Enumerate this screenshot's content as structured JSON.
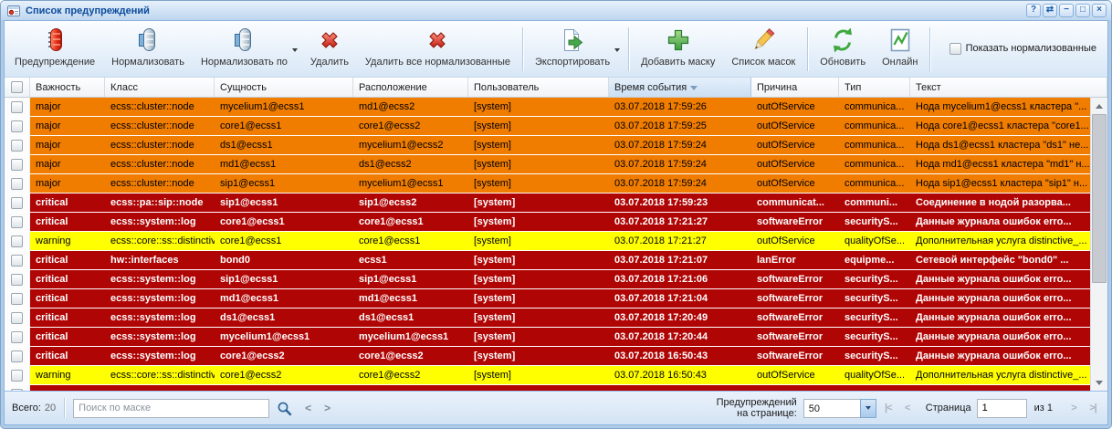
{
  "window": {
    "title": "Список предупреждений",
    "controls": [
      {
        "name": "help",
        "glyph": "?"
      },
      {
        "name": "refresh",
        "glyph": "⇄"
      },
      {
        "name": "minimize",
        "glyph": "−"
      },
      {
        "name": "maximize",
        "glyph": "□"
      },
      {
        "name": "close",
        "glyph": "×"
      }
    ]
  },
  "toolbar": {
    "buttons": [
      {
        "name": "alarm-button",
        "label": "Предупреждение",
        "icon": "alarm-beacon-red",
        "has_menu": false
      },
      {
        "name": "normalize-button",
        "label": "Нормализовать",
        "icon": "alarm-beacon-normalize",
        "has_menu": false
      },
      {
        "name": "normalize-by-button",
        "label": "Нормализовать по",
        "icon": "alarm-beacon-normalize",
        "has_menu": true
      },
      {
        "name": "delete-button",
        "label": "Удалить",
        "icon": "delete-cross-red",
        "has_menu": false
      },
      {
        "name": "delete-all-normalized-button",
        "label": "Удалить все нормализованные",
        "icon": "delete-cross-red",
        "has_menu": false
      },
      {
        "name": "export-button",
        "label": "Экспортировать",
        "icon": "export-document-arrow",
        "has_menu": true
      },
      {
        "name": "add-mask-button",
        "label": "Добавить маску",
        "icon": "add-plus-green",
        "has_menu": false
      },
      {
        "name": "mask-list-button",
        "label": "Список масок",
        "icon": "pencil-edit",
        "has_menu": false
      },
      {
        "name": "refresh-button",
        "label": "Обновить",
        "icon": "refresh-arrows-green",
        "has_menu": false
      },
      {
        "name": "online-button",
        "label": "Онлайн",
        "icon": "online-chart",
        "has_menu": false
      }
    ],
    "show_normalized_checkbox": {
      "label": "Показать нормализованные",
      "checked": false
    }
  },
  "grid": {
    "columns": [
      {
        "key": "severity",
        "label": "Важность"
      },
      {
        "key": "class",
        "label": "Класс"
      },
      {
        "key": "entity",
        "label": "Сущность"
      },
      {
        "key": "location",
        "label": "Расположение"
      },
      {
        "key": "user",
        "label": "Пользователь"
      },
      {
        "key": "time",
        "label": "Время события"
      },
      {
        "key": "reason",
        "label": "Причина"
      },
      {
        "key": "type",
        "label": "Тип"
      },
      {
        "key": "text",
        "label": "Текст"
      }
    ],
    "sort": {
      "column_key": "time",
      "direction": "desc"
    },
    "rows": [
      {
        "severity": "major",
        "class": "ecss::cluster::node",
        "entity": "mycelium1@ecss1",
        "location": "md1@ecss2",
        "user": "[system]",
        "time": "03.07.2018 17:59:26",
        "reason": "outOfService",
        "type": "communica...",
        "text": "Нода mycelium1@ecss1 кластера \"..."
      },
      {
        "severity": "major",
        "class": "ecss::cluster::node",
        "entity": "core1@ecss1",
        "location": "core1@ecss2",
        "user": "[system]",
        "time": "03.07.2018 17:59:25",
        "reason": "outOfService",
        "type": "communica...",
        "text": "Нода core1@ecss1 кластера \"core1..."
      },
      {
        "severity": "major",
        "class": "ecss::cluster::node",
        "entity": "ds1@ecss1",
        "location": "mycelium1@ecss2",
        "user": "[system]",
        "time": "03.07.2018 17:59:24",
        "reason": "outOfService",
        "type": "communica...",
        "text": "Нода ds1@ecss1 кластера \"ds1\" не..."
      },
      {
        "severity": "major",
        "class": "ecss::cluster::node",
        "entity": "md1@ecss1",
        "location": "ds1@ecss2",
        "user": "[system]",
        "time": "03.07.2018 17:59:24",
        "reason": "outOfService",
        "type": "communica...",
        "text": "Нода md1@ecss1 кластера \"md1\" н..."
      },
      {
        "severity": "major",
        "class": "ecss::cluster::node",
        "entity": "sip1@ecss1",
        "location": "mycelium1@ecss1",
        "user": "[system]",
        "time": "03.07.2018 17:59:24",
        "reason": "outOfService",
        "type": "communica...",
        "text": "Нода sip1@ecss1 кластера \"sip1\" н..."
      },
      {
        "severity": "critical",
        "class": "ecss::pa::sip::node",
        "entity": "sip1@ecss1",
        "location": "sip1@ecss2",
        "user": "[system]",
        "time": "03.07.2018 17:59:23",
        "reason": "communicat...",
        "type": "communi...",
        "text": "Соединение в нодой разорва..."
      },
      {
        "severity": "critical",
        "class": "ecss::system::log",
        "entity": "core1@ecss1",
        "location": "core1@ecss1",
        "user": "[system]",
        "time": "03.07.2018 17:21:27",
        "reason": "softwareError",
        "type": "securityS...",
        "text": "Данные журнала ошибок erro..."
      },
      {
        "severity": "warning",
        "class": "ecss::core::ss::distinctiv...",
        "entity": "core1@ecss1",
        "location": "core1@ecss1",
        "user": "[system]",
        "time": "03.07.2018 17:21:27",
        "reason": "outOfService",
        "type": "qualityOfSe...",
        "text": "Дополнительная услуга distinctive_..."
      },
      {
        "severity": "critical",
        "class": "hw::interfaces",
        "entity": "bond0",
        "location": "ecss1",
        "user": "[system]",
        "time": "03.07.2018 17:21:07",
        "reason": "lanError",
        "type": "equipme...",
        "text": "Сетевой интерфейс \"bond0\" ..."
      },
      {
        "severity": "critical",
        "class": "ecss::system::log",
        "entity": "sip1@ecss1",
        "location": "sip1@ecss1",
        "user": "[system]",
        "time": "03.07.2018 17:21:06",
        "reason": "softwareError",
        "type": "securityS...",
        "text": "Данные журнала ошибок erro..."
      },
      {
        "severity": "critical",
        "class": "ecss::system::log",
        "entity": "md1@ecss1",
        "location": "md1@ecss1",
        "user": "[system]",
        "time": "03.07.2018 17:21:04",
        "reason": "softwareError",
        "type": "securityS...",
        "text": "Данные журнала ошибок erro..."
      },
      {
        "severity": "critical",
        "class": "ecss::system::log",
        "entity": "ds1@ecss1",
        "location": "ds1@ecss1",
        "user": "[system]",
        "time": "03.07.2018 17:20:49",
        "reason": "softwareError",
        "type": "securityS...",
        "text": "Данные журнала ошибок erro..."
      },
      {
        "severity": "critical",
        "class": "ecss::system::log",
        "entity": "mycelium1@ecss1",
        "location": "mycelium1@ecss1",
        "user": "[system]",
        "time": "03.07.2018 17:20:44",
        "reason": "softwareError",
        "type": "securityS...",
        "text": "Данные журнала ошибок erro..."
      },
      {
        "severity": "critical",
        "class": "ecss::system::log",
        "entity": "core1@ecss2",
        "location": "core1@ecss2",
        "user": "[system]",
        "time": "03.07.2018 16:50:43",
        "reason": "softwareError",
        "type": "securityS...",
        "text": "Данные журнала ошибок erro..."
      },
      {
        "severity": "warning",
        "class": "ecss::core::ss::distinctiv...",
        "entity": "core1@ecss2",
        "location": "core1@ecss2",
        "user": "[system]",
        "time": "03.07.2018 16:50:43",
        "reason": "outOfService",
        "type": "qualityOfSe...",
        "text": "Дополнительная услуга distinctive_..."
      }
    ],
    "partial_row": {
      "severity": "critical"
    }
  },
  "footer": {
    "total_label": "Всего:",
    "total_value": "20",
    "search_placeholder": "Поиск по маске",
    "per_page_label_line1": "Предупреждений",
    "per_page_label_line2": "на странице:",
    "per_page_value": "50",
    "page_label": "Страница",
    "page_value": "1",
    "page_of": "из 1"
  },
  "colors": {
    "severity_major_bg": "#F07C00",
    "severity_critical_bg": "#B00505",
    "severity_warning_bg": "#FFFF00",
    "critical_text": "#FFFFFF",
    "accent_blue": "#0A4A9B"
  }
}
